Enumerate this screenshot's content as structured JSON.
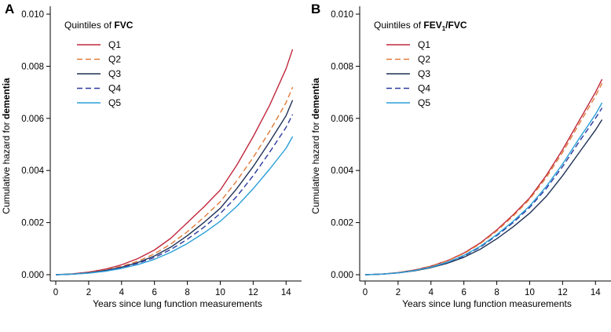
{
  "chart_data": [
    {
      "type": "line",
      "panel_label": "A",
      "legend_title_prefix": "Quintiles of ",
      "legend_title_bold": "FVC",
      "xlabel": "Years since lung function measurements",
      "ylabel_prefix": "Cumulative hazard for ",
      "ylabel_bold": "dementia",
      "xlim": [
        0,
        14.8
      ],
      "ylim": [
        0,
        0.01
      ],
      "xticks": [
        0,
        2,
        4,
        6,
        8,
        10,
        12,
        14
      ],
      "xtick_labels": [
        "0",
        "2",
        "4",
        "6",
        "8",
        "10",
        "12",
        "14"
      ],
      "yticks": [
        0,
        0.002,
        0.004,
        0.006,
        0.008,
        0.01
      ],
      "ytick_labels": [
        "0.000",
        "0.002",
        "0.004",
        "0.006",
        "0.008",
        "0.010"
      ],
      "x": [
        0,
        1,
        2,
        3,
        4,
        5,
        6,
        7,
        8,
        9,
        10,
        11,
        12,
        13,
        14,
        14.4
      ],
      "series": [
        {
          "name": "Q1",
          "color": "#c0283c",
          "dash": "",
          "values": [
            0,
            3e-05,
            0.0001,
            0.00021,
            0.00038,
            0.00062,
            0.00095,
            0.0014,
            0.002,
            0.0026,
            0.00325,
            0.0042,
            0.0053,
            0.0065,
            0.0079,
            0.00865
          ]
        },
        {
          "name": "Q2",
          "color": "#e07b39",
          "dash": "7 4",
          "values": [
            0,
            2e-05,
            8e-05,
            0.00018,
            0.00032,
            0.00052,
            0.0008,
            0.00118,
            0.00165,
            0.0022,
            0.0028,
            0.0036,
            0.0045,
            0.0055,
            0.0066,
            0.0072
          ]
        },
        {
          "name": "Q3",
          "color": "#1f3155",
          "dash": "",
          "values": [
            0,
            2e-05,
            7e-05,
            0.00016,
            0.00029,
            0.00047,
            0.00072,
            0.00106,
            0.0015,
            0.002,
            0.00255,
            0.0033,
            0.00415,
            0.0051,
            0.0061,
            0.0067
          ]
        },
        {
          "name": "Q4",
          "color": "#2b3a9e",
          "dash": "7 4",
          "values": [
            0,
            2e-05,
            7e-05,
            0.00015,
            0.00027,
            0.00044,
            0.00066,
            0.00097,
            0.00136,
            0.00182,
            0.00235,
            0.003,
            0.0038,
            0.0047,
            0.00565,
            0.00615
          ]
        },
        {
          "name": "Q5",
          "color": "#2a9fd8",
          "dash": "",
          "values": [
            0,
            2e-05,
            6e-05,
            0.00013,
            0.00024,
            0.00039,
            0.00059,
            0.00086,
            0.0012,
            0.0016,
            0.00205,
            0.00262,
            0.0033,
            0.00405,
            0.00485,
            0.0053
          ]
        }
      ]
    },
    {
      "type": "line",
      "panel_label": "B",
      "legend_title_prefix": "Quintiles of ",
      "legend_title_bold": "FEV",
      "legend_title_sub": "1",
      "legend_title_suffix": "/FVC",
      "xlabel": "Years since lung function measurements",
      "ylabel_prefix": "Cumulative hazard for ",
      "ylabel_bold": "dementia",
      "xlim": [
        0,
        14.8
      ],
      "ylim": [
        0,
        0.01
      ],
      "xticks": [
        0,
        2,
        4,
        6,
        8,
        10,
        12,
        14
      ],
      "xtick_labels": [
        "0",
        "2",
        "4",
        "6",
        "8",
        "10",
        "12",
        "14"
      ],
      "yticks": [
        0,
        0.002,
        0.004,
        0.006,
        0.008,
        0.01
      ],
      "ytick_labels": [
        "0.000",
        "0.002",
        "0.004",
        "0.006",
        "0.008",
        "0.010"
      ],
      "x": [
        0,
        1,
        2,
        3,
        4,
        5,
        6,
        7,
        8,
        9,
        10,
        11,
        12,
        13,
        14,
        14.4
      ],
      "series": [
        {
          "name": "Q1",
          "color": "#c0283c",
          "dash": "",
          "values": [
            0,
            2e-05,
            8e-05,
            0.00018,
            0.00033,
            0.00054,
            0.00083,
            0.00122,
            0.00172,
            0.0023,
            0.00295,
            0.0038,
            0.0048,
            0.0059,
            0.007,
            0.0075
          ]
        },
        {
          "name": "Q2",
          "color": "#e07b39",
          "dash": "7 4",
          "values": [
            0,
            2e-05,
            8e-05,
            0.00018,
            0.00032,
            0.00053,
            0.00081,
            0.00119,
            0.00168,
            0.00225,
            0.0029,
            0.00372,
            0.0047,
            0.00578,
            0.00685,
            0.00735
          ]
        },
        {
          "name": "Q3",
          "color": "#1f3155",
          "dash": "",
          "values": [
            0,
            2e-05,
            7e-05,
            0.00015,
            0.00027,
            0.00044,
            0.00067,
            0.00098,
            0.00138,
            0.00184,
            0.00236,
            0.003,
            0.0038,
            0.00468,
            0.00555,
            0.00595
          ]
        },
        {
          "name": "Q4",
          "color": "#2b3a9e",
          "dash": "7 4",
          "values": [
            0,
            2e-05,
            7e-05,
            0.00016,
            0.00029,
            0.00047,
            0.00072,
            0.00106,
            0.0015,
            0.002,
            0.00258,
            0.0033,
            0.00415,
            0.0051,
            0.006,
            0.0064
          ]
        },
        {
          "name": "Q5",
          "color": "#2a9fd8",
          "dash": "",
          "values": [
            0,
            2e-05,
            7e-05,
            0.00016,
            0.00029,
            0.00048,
            0.00074,
            0.00109,
            0.00154,
            0.00205,
            0.00264,
            0.00338,
            0.00425,
            0.00522,
            0.00615,
            0.0066
          ]
        }
      ]
    }
  ]
}
